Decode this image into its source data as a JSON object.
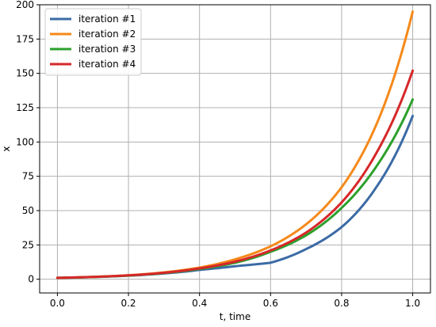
{
  "chart_data": {
    "type": "line",
    "xlabel": "t, time",
    "ylabel": "x",
    "xlim": [
      -0.05,
      1.05
    ],
    "ylim": [
      -10,
      200
    ],
    "xticks": [
      "0.0",
      "0.2",
      "0.4",
      "0.6",
      "0.8",
      "1.0"
    ],
    "yticks": [
      "0",
      "25",
      "50",
      "75",
      "100",
      "125",
      "150",
      "175",
      "200"
    ],
    "grid": true,
    "legend_position": "top-left",
    "x": [
      0.0,
      0.1,
      0.2,
      0.3,
      0.4,
      0.5,
      0.6,
      0.7,
      0.8,
      0.9,
      1.0
    ],
    "series": [
      {
        "name": "iteration #1",
        "color": "#3b6ba5",
        "values": [
          1.0,
          1.6,
          2.6,
          4.2,
          6.8,
          9.5,
          12.0,
          22.0,
          38.0,
          68.0,
          119.0
        ]
      },
      {
        "name": "iteration #2",
        "color": "#f5891a",
        "values": [
          1.0,
          1.7,
          2.9,
          5.0,
          8.5,
          14.5,
          24.0,
          40.0,
          67.0,
          114.0,
          195.0
        ]
      },
      {
        "name": "iteration #3",
        "color": "#2ca02c",
        "values": [
          1.0,
          1.6,
          2.7,
          4.5,
          7.5,
          12.0,
          20.0,
          32.0,
          52.0,
          83.0,
          131.0
        ]
      },
      {
        "name": "iteration #4",
        "color": "#d62728",
        "values": [
          1.0,
          1.7,
          2.8,
          4.7,
          7.9,
          12.8,
          21.0,
          34.0,
          56.0,
          93.0,
          152.0
        ]
      }
    ]
  }
}
